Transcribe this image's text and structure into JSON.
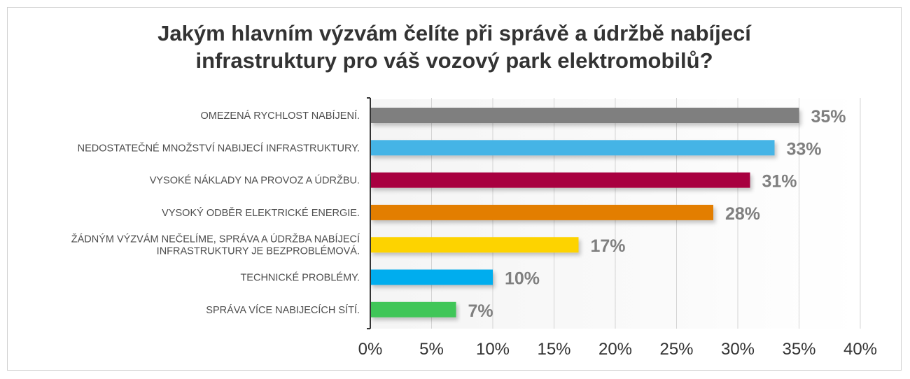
{
  "chart_data": {
    "type": "bar",
    "orientation": "horizontal",
    "title_lines": [
      "Jakým hlavním výzvám čelíte při správě a údržbě nabíjecí",
      "infrastruktury pro váš vozový park elektromobilů?"
    ],
    "categories": [
      [
        "OMEZENÁ RYCHLOST NABÍJENÍ."
      ],
      [
        "NEDOSTATEČNÉ MNOŽSTVÍ NABIJECÍ INFRASTRUKTURY."
      ],
      [
        "VYSOKÉ NÁKLADY NA PROVOZ A ÚDRŽBU."
      ],
      [
        "VYSOKÝ ODBĚR ELEKTRICKÉ ENERGIE."
      ],
      [
        "ŽÁDNÝM VÝZVÁM NEČELÍME, SPRÁVA A ÚDRŽBA NABÍJECÍ",
        "INFRASTRUKTURY JE BEZPROBLÉMOVÁ."
      ],
      [
        "TECHNICKÉ PROBLÉMY."
      ],
      [
        "SPRÁVA VÍCE NABIJECÍCH SÍTÍ."
      ]
    ],
    "values": [
      35,
      33,
      31,
      28,
      17,
      10,
      7
    ],
    "value_labels": [
      "35%",
      "33%",
      "31%",
      "28%",
      "17%",
      "10%",
      "7%"
    ],
    "colors": [
      "#7f7f7f",
      "#45b4e6",
      "#a8003f",
      "#e37e05",
      "#fdd300",
      "#00adee",
      "#3fc659"
    ],
    "xlim": [
      0,
      40
    ],
    "xticks": [
      0,
      5,
      10,
      15,
      20,
      25,
      30,
      35,
      40
    ],
    "xtick_labels": [
      "0%",
      "5%",
      "10%",
      "15%",
      "20%",
      "25%",
      "30%",
      "35%",
      "40%"
    ],
    "grid": "vertical",
    "legend": "none"
  }
}
